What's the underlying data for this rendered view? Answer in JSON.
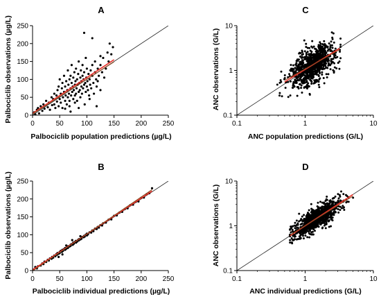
{
  "chart_data": [
    {
      "panel": "A",
      "type": "scatter",
      "xlabel": "Palbociclib population predictions (µg/L)",
      "ylabel": "Palbociclib observations (µg/L)",
      "xscale": "linear",
      "yscale": "linear",
      "xlim": [
        0,
        250
      ],
      "ylim": [
        0,
        250
      ],
      "xticks": [
        "0",
        "50",
        "100",
        "150",
        "200",
        "250"
      ],
      "yticks": [
        "0",
        "50",
        "100",
        "150",
        "200",
        "250"
      ],
      "identity_line": true,
      "fit_lines": [
        {
          "color": "#e8302a",
          "x": [
            0,
            150
          ],
          "y": [
            5,
            155
          ]
        },
        {
          "color": "#8a4a22",
          "x": [
            0,
            150
          ],
          "y": [
            3,
            149
          ]
        }
      ],
      "points": [
        [
          3,
          8
        ],
        [
          5,
          2
        ],
        [
          8,
          15
        ],
        [
          10,
          20
        ],
        [
          12,
          5
        ],
        [
          15,
          25
        ],
        [
          18,
          12
        ],
        [
          20,
          30
        ],
        [
          22,
          18
        ],
        [
          25,
          40
        ],
        [
          28,
          22
        ],
        [
          30,
          35
        ],
        [
          32,
          15
        ],
        [
          35,
          50
        ],
        [
          36,
          28
        ],
        [
          38,
          45
        ],
        [
          40,
          30
        ],
        [
          40,
          60
        ],
        [
          42,
          20
        ],
        [
          44,
          55
        ],
        [
          45,
          38
        ],
        [
          46,
          70
        ],
        [
          48,
          25
        ],
        [
          48,
          80
        ],
        [
          50,
          45
        ],
        [
          50,
          100
        ],
        [
          52,
          60
        ],
        [
          52,
          35
        ],
        [
          54,
          75
        ],
        [
          55,
          20
        ],
        [
          55,
          90
        ],
        [
          56,
          50
        ],
        [
          58,
          65
        ],
        [
          58,
          110
        ],
        [
          60,
          40
        ],
        [
          60,
          80
        ],
        [
          61,
          55
        ],
        [
          62,
          95
        ],
        [
          63,
          30
        ],
        [
          64,
          70
        ],
        [
          65,
          125
        ],
        [
          65,
          50
        ],
        [
          66,
          85
        ],
        [
          67,
          60
        ],
        [
          68,
          100
        ],
        [
          68,
          40
        ],
        [
          70,
          75
        ],
        [
          70,
          110
        ],
        [
          71,
          55
        ],
        [
          72,
          90
        ],
        [
          72,
          140
        ],
        [
          73,
          65
        ],
        [
          74,
          80
        ],
        [
          75,
          45
        ],
        [
          75,
          105
        ],
        [
          76,
          70
        ],
        [
          77,
          120
        ],
        [
          78,
          85
        ],
        [
          78,
          55
        ],
        [
          79,
          95
        ],
        [
          80,
          60
        ],
        [
          80,
          130
        ],
        [
          81,
          75
        ],
        [
          82,
          100
        ],
        [
          82,
          40
        ],
        [
          83,
          85
        ],
        [
          84,
          115
        ],
        [
          85,
          65
        ],
        [
          85,
          150
        ],
        [
          86,
          90
        ],
        [
          87,
          70
        ],
        [
          88,
          105
        ],
        [
          88,
          50
        ],
        [
          89,
          125
        ],
        [
          90,
          80
        ],
        [
          90,
          95
        ],
        [
          91,
          60
        ],
        [
          92,
          110
        ],
        [
          92,
          140
        ],
        [
          93,
          75
        ],
        [
          94,
          100
        ],
        [
          95,
          85
        ],
        [
          95,
          120
        ],
        [
          96,
          30
        ],
        [
          97,
          90
        ],
        [
          98,
          65
        ],
        [
          98,
          160
        ],
        [
          99,
          105
        ],
        [
          100,
          80
        ],
        [
          100,
          130
        ],
        [
          101,
          95
        ],
        [
          102,
          70
        ],
        [
          103,
          115
        ],
        [
          104,
          55
        ],
        [
          105,
          100
        ],
        [
          106,
          85
        ],
        [
          107,
          125
        ],
        [
          108,
          75
        ],
        [
          110,
          110
        ],
        [
          110,
          140
        ],
        [
          112,
          90
        ],
        [
          113,
          60
        ],
        [
          115,
          120
        ],
        [
          115,
          150
        ],
        [
          117,
          100
        ],
        [
          118,
          80
        ],
        [
          120,
          130
        ],
        [
          120,
          95
        ],
        [
          122,
          110
        ],
        [
          125,
          140
        ],
        [
          125,
          70
        ],
        [
          128,
          120
        ],
        [
          130,
          160
        ],
        [
          132,
          105
        ],
        [
          135,
          130
        ],
        [
          138,
          175
        ],
        [
          140,
          150
        ],
        [
          142,
          200
        ],
        [
          145,
          170
        ],
        [
          148,
          190
        ],
        [
          118,
          25
        ],
        [
          95,
          230
        ],
        [
          110,
          215
        ],
        [
          125,
          165
        ],
        [
          60,
          18
        ],
        [
          70,
          10
        ],
        [
          85,
          20
        ],
        [
          105,
          45
        ],
        [
          78,
          35
        ],
        [
          68,
          25
        ]
      ]
    },
    {
      "panel": "B",
      "type": "scatter",
      "xlabel": "Palbociclib individual predictions (µg/L)",
      "ylabel": "Palbociclib observations (µg/L)",
      "xscale": "linear",
      "yscale": "linear",
      "xlim": [
        0,
        250
      ],
      "ylim": [
        0,
        250
      ],
      "xticks": [
        "0",
        "50",
        "100",
        "150",
        "200",
        "250"
      ],
      "yticks": [
        "0",
        "50",
        "100",
        "150",
        "200",
        "250"
      ],
      "identity_line": true,
      "fit_lines": [
        {
          "color": "#e8302a",
          "x": [
            0,
            220
          ],
          "y": [
            2,
            222
          ]
        },
        {
          "color": "#8a4a22",
          "x": [
            0,
            220
          ],
          "y": [
            -1,
            226
          ]
        }
      ],
      "points": [
        [
          2,
          3
        ],
        [
          5,
          10
        ],
        [
          8,
          6
        ],
        [
          10,
          12
        ],
        [
          15,
          14
        ],
        [
          18,
          20
        ],
        [
          20,
          18
        ],
        [
          22,
          25
        ],
        [
          25,
          24
        ],
        [
          28,
          30
        ],
        [
          30,
          28
        ],
        [
          32,
          34
        ],
        [
          35,
          33
        ],
        [
          36,
          38
        ],
        [
          38,
          36
        ],
        [
          40,
          42
        ],
        [
          42,
          40
        ],
        [
          44,
          46
        ],
        [
          45,
          44
        ],
        [
          46,
          49
        ],
        [
          48,
          47
        ],
        [
          50,
          52
        ],
        [
          50,
          49
        ],
        [
          52,
          55
        ],
        [
          54,
          52
        ],
        [
          55,
          58
        ],
        [
          56,
          55
        ],
        [
          58,
          60
        ],
        [
          60,
          58
        ],
        [
          60,
          63
        ],
        [
          62,
          61
        ],
        [
          64,
          66
        ],
        [
          65,
          63
        ],
        [
          66,
          68
        ],
        [
          68,
          67
        ],
        [
          70,
          72
        ],
        [
          70,
          69
        ],
        [
          72,
          74
        ],
        [
          74,
          72
        ],
        [
          75,
          78
        ],
        [
          76,
          75
        ],
        [
          78,
          80
        ],
        [
          80,
          78
        ],
        [
          80,
          83
        ],
        [
          82,
          81
        ],
        [
          84,
          86
        ],
        [
          85,
          84
        ],
        [
          86,
          88
        ],
        [
          88,
          87
        ],
        [
          90,
          92
        ],
        [
          90,
          89
        ],
        [
          92,
          94
        ],
        [
          94,
          93
        ],
        [
          95,
          97
        ],
        [
          96,
          95
        ],
        [
          98,
          100
        ],
        [
          100,
          98
        ],
        [
          100,
          103
        ],
        [
          102,
          101
        ],
        [
          105,
          107
        ],
        [
          108,
          106
        ],
        [
          110,
          112
        ],
        [
          112,
          110
        ],
        [
          115,
          117
        ],
        [
          118,
          116
        ],
        [
          120,
          122
        ],
        [
          122,
          120
        ],
        [
          125,
          127
        ],
        [
          128,
          126
        ],
        [
          130,
          132
        ],
        [
          135,
          134
        ],
        [
          140,
          142
        ],
        [
          145,
          143
        ],
        [
          150,
          153
        ],
        [
          155,
          154
        ],
        [
          160,
          162
        ],
        [
          165,
          164
        ],
        [
          170,
          172
        ],
        [
          175,
          174
        ],
        [
          180,
          183
        ],
        [
          185,
          184
        ],
        [
          190,
          192
        ],
        [
          195,
          193
        ],
        [
          200,
          203
        ],
        [
          205,
          204
        ],
        [
          210,
          213
        ],
        [
          215,
          216
        ],
        [
          220,
          230
        ],
        [
          48,
          38
        ],
        [
          55,
          45
        ],
        [
          62,
          70
        ],
        [
          73,
          85
        ],
        [
          88,
          96
        ]
      ]
    },
    {
      "panel": "C",
      "type": "scatter",
      "xlabel": "ANC population predictions (G/L)",
      "ylabel": "ANC observations (G/L)",
      "xscale": "log",
      "yscale": "log",
      "xlim": [
        0.1,
        10
      ],
      "ylim": [
        0.1,
        10
      ],
      "xticks": [
        "0.1",
        "1",
        "10"
      ],
      "yticks": [
        "0.1",
        "1",
        "10"
      ],
      "identity_line": true,
      "fit_lines": [
        {
          "color": "#e8302a",
          "x": [
            0.5,
            3.2
          ],
          "y": [
            0.55,
            3.1
          ]
        },
        {
          "color": "#8a4a22",
          "x": [
            0.5,
            3.2
          ],
          "y": [
            0.6,
            2.9
          ]
        }
      ]
    },
    {
      "panel": "D",
      "type": "scatter",
      "xlabel": "ANC individual predictions (G/L)",
      "ylabel": "ANC observations (G/L)",
      "xscale": "log",
      "yscale": "log",
      "xlim": [
        0.1,
        10
      ],
      "ylim": [
        0.1,
        10
      ],
      "xticks": [
        "0.1",
        "1",
        "10"
      ],
      "yticks": [
        "0.1",
        "1",
        "10"
      ],
      "identity_line": true,
      "fit_lines": [
        {
          "color": "#e8302a",
          "x": [
            0.6,
            5
          ],
          "y": [
            0.6,
            5
          ]
        },
        {
          "color": "#8a4a22",
          "x": [
            0.6,
            5
          ],
          "y": [
            0.62,
            4.6
          ]
        }
      ]
    }
  ]
}
